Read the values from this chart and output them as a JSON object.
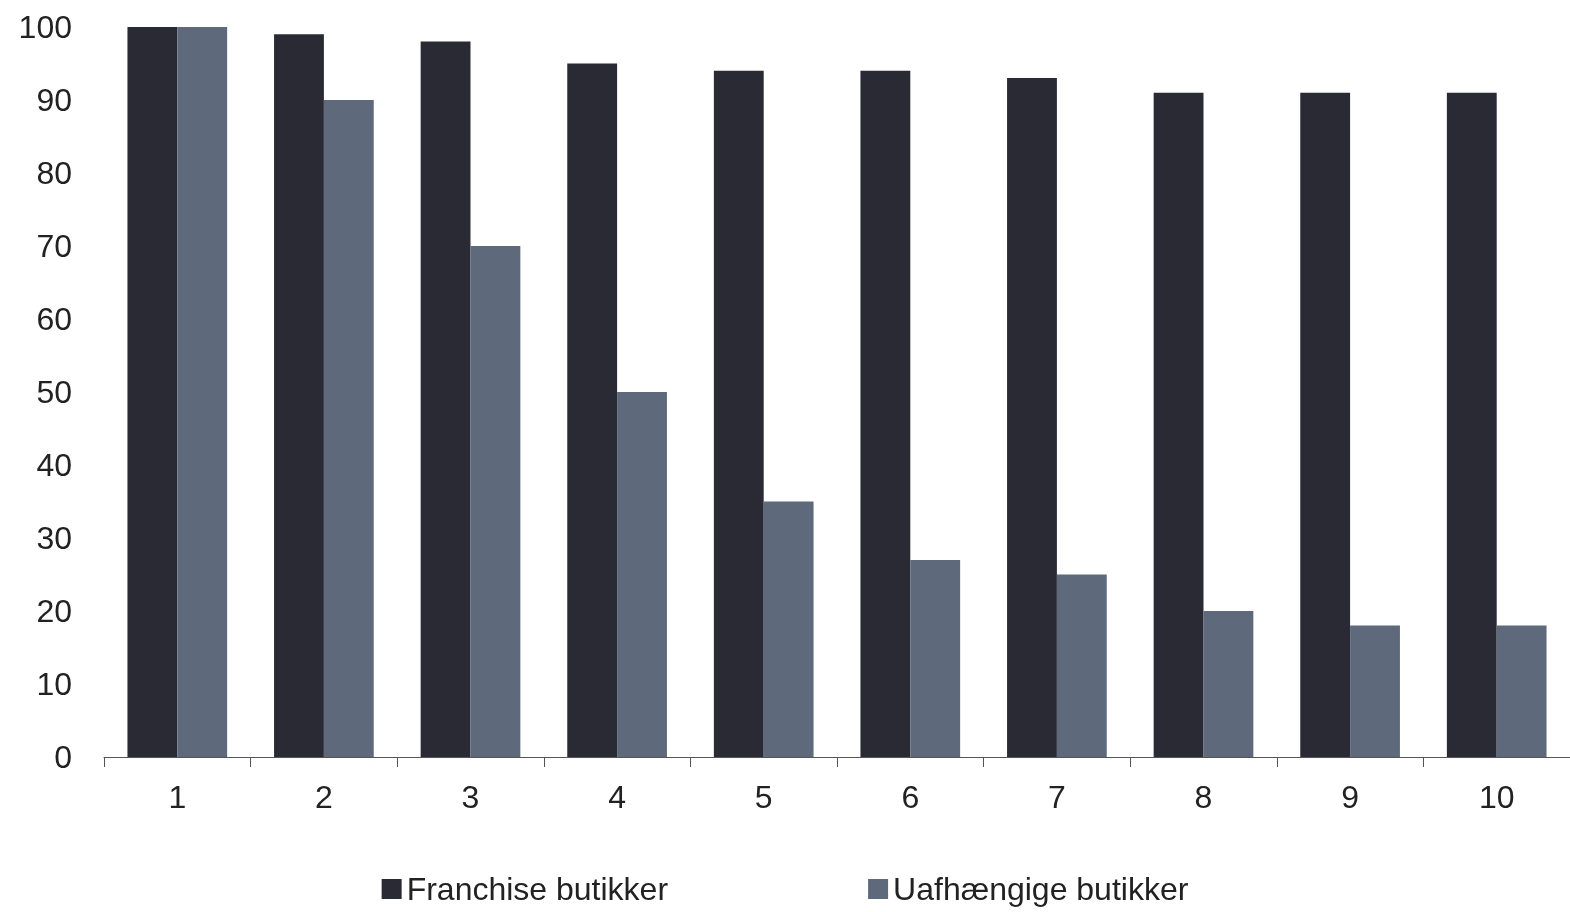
{
  "chart_data": {
    "type": "bar",
    "categories": [
      "1",
      "2",
      "3",
      "4",
      "5",
      "6",
      "7",
      "8",
      "9",
      "10"
    ],
    "series": [
      {
        "name": "Franchise butikker",
        "color": "#2a2a35",
        "values": [
          100,
          99,
          98,
          95,
          94,
          94,
          93,
          91,
          91,
          91
        ]
      },
      {
        "name": "Uafhængige butikker",
        "color": "#5e6a7c",
        "values": [
          100,
          90,
          70,
          50,
          35,
          27,
          25,
          20,
          18,
          18
        ]
      }
    ],
    "ylim": [
      0,
      100
    ],
    "yticks": [
      0,
      10,
      20,
      30,
      40,
      50,
      60,
      70,
      80,
      90,
      100
    ],
    "legend": "bottom"
  }
}
